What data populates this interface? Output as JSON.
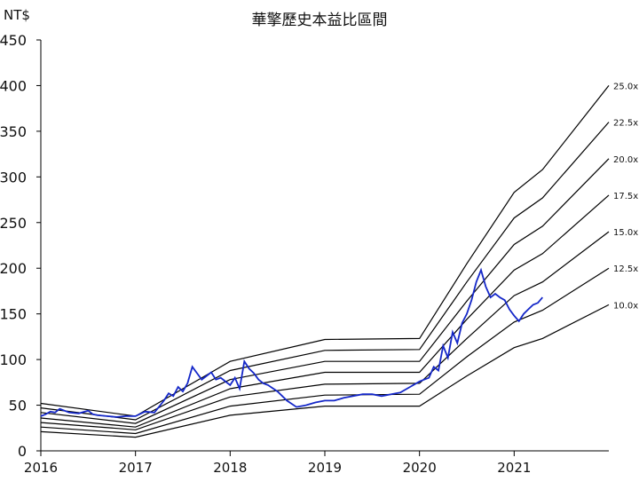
{
  "chart_data": {
    "type": "line",
    "title": "華擎歷史本益比區間",
    "ylabel": "NT$",
    "ylim": [
      0,
      450
    ],
    "yticks": [
      "0",
      "50",
      "100",
      "150",
      "200",
      "250",
      "300",
      "350",
      "400",
      "450"
    ],
    "xlim": [
      2016.0,
      2022.0
    ],
    "xticks": [
      "2016",
      "2017",
      "2018",
      "2019",
      "2020",
      "2021"
    ],
    "grid": false,
    "bands": [
      {
        "name": "25.0x",
        "x": [
          2016.0,
          2017.0,
          2018.0,
          2019.0,
          2020.0,
          2020.5,
          2021.0,
          2021.3,
          2022.0
        ],
        "values": [
          52,
          38,
          98,
          122,
          123,
          205,
          283,
          308,
          400
        ]
      },
      {
        "name": "22.5x",
        "x": [
          2016.0,
          2017.0,
          2018.0,
          2019.0,
          2020.0,
          2020.5,
          2021.0,
          2021.3,
          2022.0
        ],
        "values": [
          47,
          34,
          88,
          110,
          111,
          185,
          255,
          277,
          360
        ]
      },
      {
        "name": "20.0x",
        "x": [
          2016.0,
          2017.0,
          2018.0,
          2019.0,
          2020.0,
          2020.5,
          2021.0,
          2021.3,
          2022.0
        ],
        "values": [
          42,
          30,
          78,
          98,
          98,
          164,
          226,
          246,
          320
        ]
      },
      {
        "name": "17.5x",
        "x": [
          2016.0,
          2017.0,
          2018.0,
          2019.0,
          2020.0,
          2020.5,
          2021.0,
          2021.3,
          2022.0
        ],
        "values": [
          36,
          26,
          68,
          86,
          86,
          144,
          198,
          216,
          280
        ]
      },
      {
        "name": "15.0x",
        "x": [
          2016.0,
          2017.0,
          2018.0,
          2019.0,
          2020.0,
          2020.5,
          2021.0,
          2021.3,
          2022.0
        ],
        "values": [
          31,
          23,
          59,
          73,
          74,
          123,
          170,
          185,
          240
        ]
      },
      {
        "name": "12.5x",
        "x": [
          2016.0,
          2017.0,
          2018.0,
          2019.0,
          2020.0,
          2020.5,
          2021.0,
          2021.3,
          2022.0
        ],
        "values": [
          26,
          19,
          49,
          61,
          62,
          103,
          141,
          154,
          200
        ]
      },
      {
        "name": "10.0x",
        "x": [
          2016.0,
          2017.0,
          2018.0,
          2019.0,
          2020.0,
          2020.5,
          2021.0,
          2021.3,
          2022.0
        ],
        "values": [
          21,
          15,
          39,
          49,
          49,
          82,
          113,
          123,
          160
        ]
      }
    ],
    "price": {
      "x": [
        2016.0,
        2016.05,
        2016.1,
        2016.15,
        2016.2,
        2016.3,
        2016.4,
        2016.5,
        2016.55,
        2016.6,
        2016.7,
        2016.8,
        2016.9,
        2017.0,
        2017.1,
        2017.2,
        2017.3,
        2017.35,
        2017.4,
        2017.45,
        2017.5,
        2017.55,
        2017.6,
        2017.65,
        2017.7,
        2017.75,
        2017.8,
        2017.85,
        2017.9,
        2018.0,
        2018.05,
        2018.1,
        2018.15,
        2018.2,
        2018.25,
        2018.3,
        2018.35,
        2018.4,
        2018.5,
        2018.6,
        2018.7,
        2018.8,
        2018.9,
        2019.0,
        2019.1,
        2019.2,
        2019.3,
        2019.4,
        2019.5,
        2019.6,
        2019.7,
        2019.8,
        2019.9,
        2020.0,
        2020.05,
        2020.1,
        2020.15,
        2020.2,
        2020.25,
        2020.3,
        2020.35,
        2020.4,
        2020.45,
        2020.5,
        2020.55,
        2020.6,
        2020.65,
        2020.7,
        2020.75,
        2020.8,
        2020.85,
        2020.9,
        2020.95,
        2021.0,
        2021.05,
        2021.1,
        2021.15,
        2021.2,
        2021.25,
        2021.3
      ],
      "values": [
        38,
        40,
        43,
        42,
        46,
        42,
        41,
        44,
        40,
        39,
        38,
        37,
        38,
        38,
        43,
        42,
        55,
        63,
        60,
        70,
        65,
        74,
        92,
        85,
        78,
        82,
        86,
        78,
        80,
        72,
        80,
        68,
        98,
        90,
        85,
        78,
        74,
        72,
        65,
        55,
        48,
        50,
        53,
        55,
        55,
        58,
        60,
        62,
        62,
        60,
        62,
        64,
        70,
        76,
        78,
        80,
        92,
        88,
        115,
        102,
        130,
        118,
        140,
        150,
        165,
        185,
        198,
        180,
        168,
        172,
        168,
        165,
        155,
        148,
        142,
        150,
        155,
        160,
        162,
        168
      ]
    }
  }
}
